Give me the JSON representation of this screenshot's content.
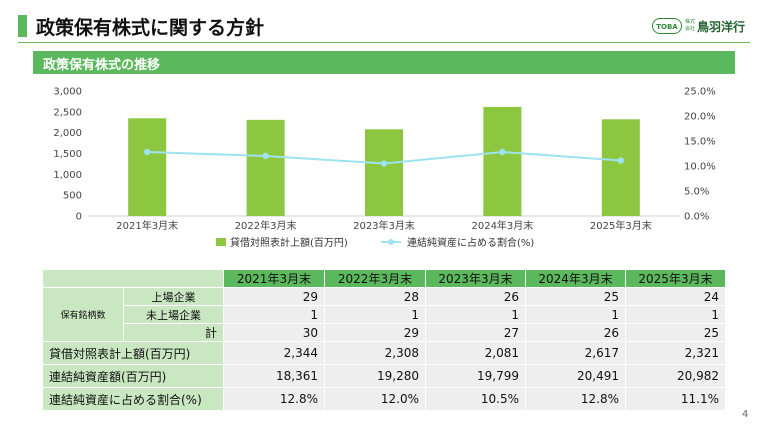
{
  "page": {
    "title": "政策保有株式に関する方針",
    "section_title": "政策保有株式の推移",
    "page_number": "4"
  },
  "logo": {
    "badge": "TOBA",
    "small": "株式会社",
    "name": "鳥羽洋行"
  },
  "colors": {
    "accent": "#5cb85c",
    "bar": "#8dc63f",
    "line": "#9de3f2",
    "header_cell": "#5cb85c",
    "label_cell": "#c9e8c1",
    "value_cell": "#eeeeee"
  },
  "chart_data": {
    "type": "bar",
    "categories": [
      "2021年3月末",
      "2022年3月末",
      "2023年3月末",
      "2024年3月末",
      "2025年3月末"
    ],
    "series": [
      {
        "name": "貸借対照表計上額(百万円)",
        "type": "bar",
        "axis": "left",
        "values": [
          2344,
          2308,
          2081,
          2617,
          2321
        ]
      },
      {
        "name": "連結純資産に占める割合(%)",
        "type": "line",
        "axis": "right",
        "values": [
          12.8,
          12.0,
          10.5,
          12.8,
          11.1
        ]
      }
    ],
    "y_left": {
      "ylim": [
        0,
        3000
      ],
      "ticks": [
        "0",
        "500",
        "1,000",
        "1,500",
        "2,000",
        "2,500",
        "3,000"
      ]
    },
    "y_right": {
      "ylim": [
        0,
        25
      ],
      "ticks": [
        "0.0%",
        "5.0%",
        "10.0%",
        "15.0%",
        "20.0%",
        "25.0%"
      ]
    },
    "grid": false,
    "legend_position": "bottom"
  },
  "table": {
    "columns": [
      "2021年3月末",
      "2022年3月末",
      "2023年3月末",
      "2024年3月末",
      "2025年3月末"
    ],
    "group_label": "保有銘柄数",
    "sub_rows": [
      {
        "label": "上場企業",
        "values": [
          "29",
          "28",
          "26",
          "25",
          "24"
        ]
      },
      {
        "label": "未上場企業",
        "values": [
          "1",
          "1",
          "1",
          "1",
          "1"
        ]
      },
      {
        "label": "計",
        "values": [
          "30",
          "29",
          "27",
          "26",
          "25"
        ]
      }
    ],
    "rows": [
      {
        "label": "貸借対照表計上額(百万円)",
        "values": [
          "2,344",
          "2,308",
          "2,081",
          "2,617",
          "2,321"
        ]
      },
      {
        "label": "連結純資産額(百万円)",
        "values": [
          "18,361",
          "19,280",
          "19,799",
          "20,491",
          "20,982"
        ]
      },
      {
        "label": "連結純資産に占める割合(%)",
        "values": [
          "12.8%",
          "12.0%",
          "10.5%",
          "12.8%",
          "11.1%"
        ]
      }
    ]
  }
}
